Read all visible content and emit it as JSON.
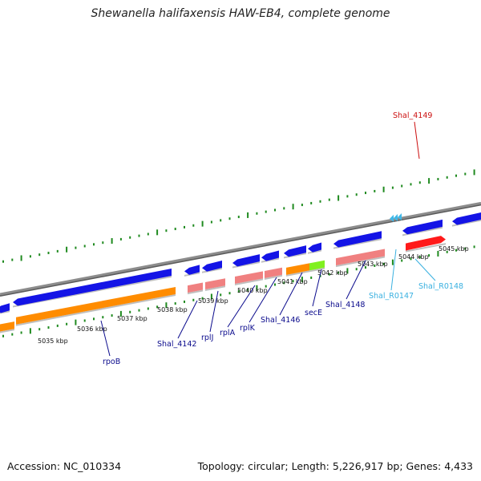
{
  "title": "Shewanella halifaxensis HAW-EB4, complete genome",
  "footer": {
    "accession": "Accession: NC_010334",
    "summary": "Topology: circular; Length: 5,226,917 bp; Genes: 4,433"
  },
  "colors": {
    "backbone": "#8c8c8c",
    "tick": "#1f8a1f",
    "gene": "#1414e6",
    "cds": "#ff8c00",
    "rrna": "#f08080",
    "special_cds": "#80f020",
    "pseudo": "#ff1a1a",
    "trna_marker": "#40b8e8",
    "label_blue": "#0a0a8c",
    "label_red": "#cc1111",
    "label_cyan": "#38b0e0"
  },
  "scale": {
    "kbp_labels": [
      "5035 kbp",
      "5036 kbp",
      "5037 kbp",
      "5038 kbp",
      "5039 kbp",
      "5040 kbp",
      "5041 kbp",
      "5042 kbp",
      "5043 kbp",
      "5044 kbp",
      "5045 kbp"
    ]
  },
  "gene_labels": [
    {
      "text": "rpoB",
      "color": "label_blue"
    },
    {
      "text": "Shal_4142",
      "color": "label_blue"
    },
    {
      "text": "rplJ",
      "color": "label_blue"
    },
    {
      "text": "rplA",
      "color": "label_blue"
    },
    {
      "text": "rplK",
      "color": "label_blue"
    },
    {
      "text": "Shal_4146",
      "color": "label_blue"
    },
    {
      "text": "secE",
      "color": "label_blue"
    },
    {
      "text": "Shal_4148",
      "color": "label_blue"
    },
    {
      "text": "Shal_R0147",
      "color": "label_cyan"
    },
    {
      "text": "Shal_R0148",
      "color": "label_cyan"
    },
    {
      "text": "Shal_4149",
      "color": "label_red"
    }
  ]
}
